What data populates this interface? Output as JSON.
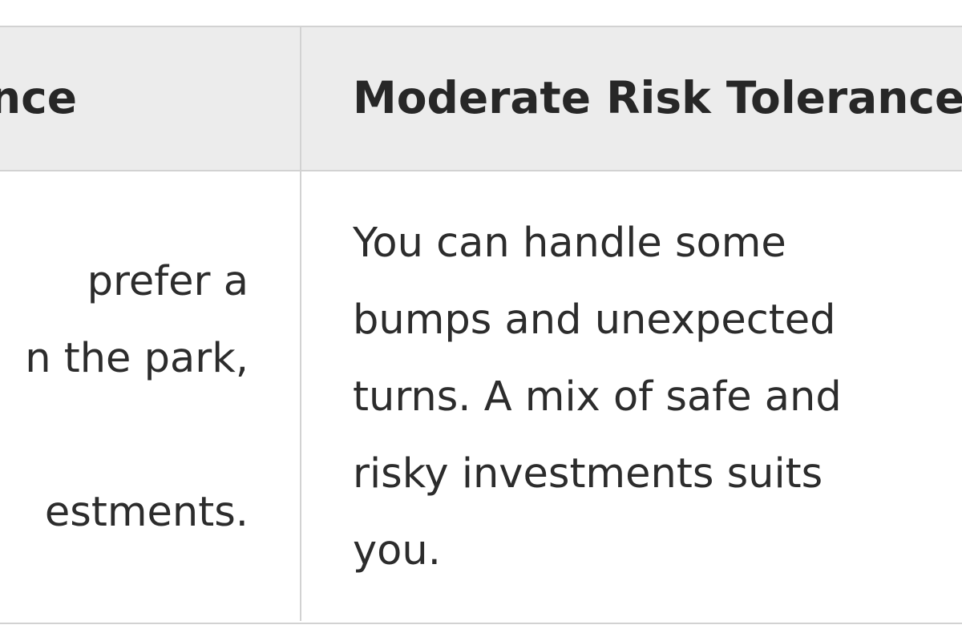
{
  "table": {
    "headers": [
      {
        "visible_text": "nce"
      },
      {
        "visible_text": "Moderate Risk Tolerance"
      }
    ],
    "rows": [
      {
        "cells": [
          {
            "lines": [
              "prefer a",
              "n the park,",
              "",
              "estments."
            ]
          },
          {
            "lines": [
              "You can handle some",
              "bumps and unexpected",
              "turns. A mix of safe and",
              "risky investments suits",
              "you."
            ]
          }
        ]
      }
    ]
  }
}
